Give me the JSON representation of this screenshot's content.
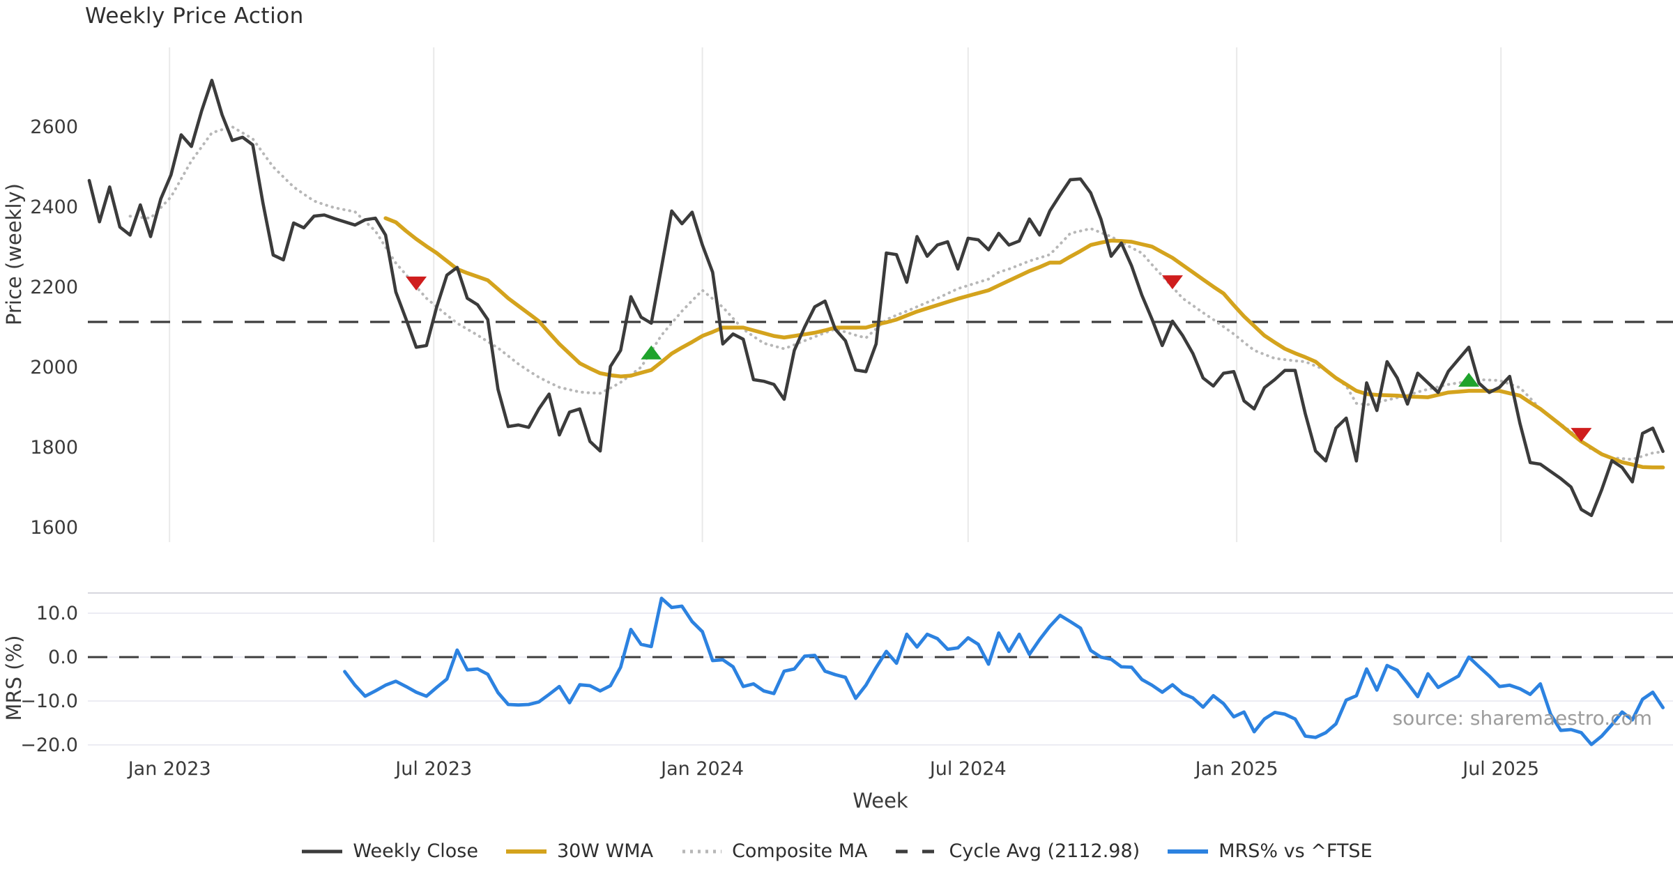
{
  "title": "Weekly Price Action",
  "watermark": "source: sharemaestro.com",
  "axes": {
    "price": {
      "label": "Price (weekly)",
      "ticks": [
        2600,
        2400,
        2200,
        2000,
        1800,
        1600
      ]
    },
    "mrs": {
      "label": "MRS (%)",
      "ticks": [
        {
          "v": 10,
          "label": "10.0"
        },
        {
          "v": 0,
          "label": "0.0"
        },
        {
          "v": -10,
          "label": "−10.0"
        },
        {
          "v": -20,
          "label": "−20.0"
        }
      ]
    },
    "x": {
      "label": "Week",
      "ticks": [
        {
          "label": "Jan 2023",
          "week": 7.857
        },
        {
          "label": "Jul 2023",
          "week": 33.714
        },
        {
          "label": "Jan 2024",
          "week": 60.0
        },
        {
          "label": "Jul 2024",
          "week": 86.0
        },
        {
          "label": "Jan 2025",
          "week": 112.286
        },
        {
          "label": "Jul 2025",
          "week": 138.143
        }
      ]
    }
  },
  "legend": {
    "items": [
      {
        "key": "close",
        "label": "Weekly Close"
      },
      {
        "key": "wma",
        "label": "30W WMA"
      },
      {
        "key": "composite",
        "label": "Composite MA"
      },
      {
        "key": "cycle",
        "label": "Cycle Avg (2112.98)"
      },
      {
        "key": "mrs",
        "label": "MRS% vs ^FTSE"
      }
    ]
  },
  "colors": {
    "close": "#3b3b3b",
    "wma": "#d4a31d",
    "composite": "#b7b7b7",
    "cycle": "#3d3d3d",
    "mrs": "#2c82e0",
    "buy": "#1fa32c",
    "sell": "#cf1d1d",
    "grid_v": "#e9e9e9",
    "grid_h": "#ececf3",
    "spine": "#d6d6de",
    "tick_text": "#3a3a3a"
  },
  "chart_data": {
    "type": "line",
    "title": "Weekly Price Action",
    "xlabel": "Week",
    "ylabel_top": "Price (weekly)",
    "ylabel_bottom": "MRS (%)",
    "start_date": "2022-11-07",
    "frequency": "weekly",
    "cycle_avg": 2112.98,
    "ylim_price": [
      1550,
      2760
    ],
    "ylim_mrs": [
      -21.5,
      14.6
    ],
    "legend_position": "bottom-center",
    "series": [
      {
        "name": "Weekly Close",
        "panel": "price",
        "style": "solid",
        "start_week": 0,
        "values": [
          2466,
          2363,
          2450,
          2350,
          2330,
          2405,
          2326,
          2420,
          2480,
          2580,
          2551,
          2640,
          2716,
          2630,
          2566,
          2574,
          2555,
          2410,
          2280,
          2268,
          2360,
          2348,
          2377,
          2380,
          2371,
          2363,
          2355,
          2368,
          2372,
          2330,
          2188,
          2120,
          2050,
          2054,
          2150,
          2230,
          2249,
          2172,
          2156,
          2119,
          1945,
          1852,
          1856,
          1850,
          1896,
          1933,
          1831,
          1888,
          1896,
          1815,
          1791,
          2002,
          2042,
          2176,
          2125,
          2110,
          2250,
          2390,
          2358,
          2387,
          2305,
          2237,
          2058,
          2083,
          2070,
          1969,
          1965,
          1957,
          1920,
          2042,
          2100,
          2151,
          2165,
          2095,
          2066,
          1993,
          1989,
          2058,
          2285,
          2281,
          2212,
          2326,
          2277,
          2305,
          2313,
          2245,
          2322,
          2318,
          2293,
          2334,
          2305,
          2315,
          2370,
          2330,
          2390,
          2430,
          2468,
          2470,
          2435,
          2370,
          2277,
          2310,
          2253,
          2180,
          2120,
          2054,
          2115,
          2079,
          2034,
          1973,
          1953,
          1985,
          1989,
          1916,
          1896,
          1949,
          1969,
          1992,
          1992,
          1884,
          1791,
          1766,
          1848,
          1873,
          1766,
          1961,
          1892,
          2014,
          1973,
          1908,
          1985,
          1961,
          1937,
          1990,
          2020,
          2050,
          1960,
          1937,
          1950,
          1977,
          1860,
          1762,
          1758,
          1740,
          1722,
          1701,
          1645,
          1630,
          1694,
          1767,
          1750,
          1714,
          1835,
          1848,
          1790
        ]
      },
      {
        "name": "Composite MA",
        "panel": "price",
        "style": "dotted",
        "start_week": 4,
        "values": [
          2377,
          2374,
          2372,
          2398,
          2425,
          2470,
          2515,
          2550,
          2585,
          2593,
          2600,
          2585,
          2570,
          2535,
          2500,
          2475,
          2450,
          2432,
          2415,
          2406,
          2398,
          2393,
          2388,
          2364,
          2340,
          2300,
          2260,
          2231,
          2201,
          2172,
          2151,
          2130,
          2110,
          2095,
          2080,
          2064,
          2048,
          2028,
          2008,
          1991,
          1975,
          1962,
          1950,
          1944,
          1938,
          1936,
          1935,
          1948,
          1962,
          1981,
          2000,
          2040,
          2080,
          2110,
          2140,
          2166,
          2192,
          2171,
          2150,
          2122,
          2095,
          2077,
          2060,
          2053,
          2046,
          2056,
          2066,
          2076,
          2086,
          2095,
          2088,
          2080,
          2073,
          2096,
          2119,
          2130,
          2140,
          2151,
          2162,
          2172,
          2184,
          2196,
          2204,
          2212,
          2220,
          2237,
          2245,
          2255,
          2265,
          2273,
          2281,
          2307,
          2334,
          2340,
          2346,
          2336,
          2326,
          2312,
          2298,
          2285,
          2256,
          2228,
          2200,
          2172,
          2154,
          2136,
          2119,
          2101,
          2083,
          2062,
          2042,
          2032,
          2022,
          2019,
          2016,
          2014,
          2003,
          1993,
          1973,
          1953,
          1910,
          1906,
          1912,
          1918,
          1924,
          1930,
          1938,
          1945,
          1951,
          1957,
          1961,
          1965,
          1969,
          1968,
          1967,
          1958,
          1949,
          1923,
          1896,
          1877,
          1858,
          1839,
          1817,
          1795,
          1785,
          1774,
          1772,
          1770,
          1778,
          1786,
          1789
        ]
      },
      {
        "name": "30W WMA",
        "panel": "price",
        "style": "solid",
        "start_week": 29,
        "values": [
          2372,
          2362,
          2340,
          2320,
          2302,
          2285,
          2265,
          2245,
          2235,
          2226,
          2217,
          2195,
          2172,
          2153,
          2134,
          2115,
          2086,
          2058,
          2034,
          2010,
          1997,
          1985,
          1980,
          1977,
          1979,
          1986,
          1993,
          2013,
          2034,
          2049,
          2063,
          2078,
          2088,
          2099,
          2099,
          2099,
          2092,
          2085,
          2078,
          2074,
          2078,
          2082,
          2086,
          2092,
          2099,
          2099,
          2099,
          2099,
          2106,
          2112,
          2119,
          2129,
          2139,
          2147,
          2155,
          2163,
          2171,
          2178,
          2185,
          2192,
          2204,
          2216,
          2228,
          2240,
          2250,
          2261,
          2261,
          2276,
          2290,
          2305,
          2311,
          2316,
          2315,
          2313,
          2307,
          2301,
          2287,
          2273,
          2255,
          2237,
          2219,
          2201,
          2184,
          2155,
          2127,
          2103,
          2079,
          2062,
          2046,
          2035,
          2025,
          2014,
          1993,
          1973,
          1957,
          1941,
          1933,
          1931,
          1930,
          1929,
          1927,
          1926,
          1925,
          1931,
          1937,
          1939,
          1941,
          1941,
          1941,
          1941,
          1935,
          1929,
          1912,
          1896,
          1876,
          1856,
          1835,
          1815,
          1799,
          1783,
          1773,
          1763,
          1757,
          1751,
          1750,
          1750
        ]
      },
      {
        "name": "MRS% vs ^FTSE",
        "panel": "mrs",
        "style": "solid",
        "start_week": 25,
        "values": [
          -3.3,
          -6.4,
          -8.9,
          -7.7,
          -6.4,
          -5.5,
          -6.7,
          -8.0,
          -8.9,
          -6.9,
          -5.0,
          1.6,
          -2.9,
          -2.7,
          -3.9,
          -8.1,
          -10.8,
          -10.9,
          -10.8,
          -10.2,
          -8.5,
          -6.7,
          -10.4,
          -6.3,
          -6.5,
          -7.7,
          -6.5,
          -2.3,
          6.3,
          2.9,
          2.4,
          13.4,
          11.3,
          11.6,
          8.1,
          5.8,
          -0.8,
          -0.6,
          -2.2,
          -6.7,
          -6.1,
          -7.7,
          -8.3,
          -3.2,
          -2.7,
          0.2,
          0.4,
          -3.2,
          -4.0,
          -4.6,
          -9.4,
          -6.4,
          -2.4,
          1.3,
          -1.4,
          5.2,
          2.3,
          5.2,
          4.2,
          1.8,
          2.1,
          4.4,
          2.9,
          -1.6,
          5.5,
          1.3,
          5.2,
          0.6,
          4.0,
          7.0,
          9.5,
          8.1,
          6.6,
          1.5,
          0.0,
          -0.5,
          -2.2,
          -2.3,
          -5.1,
          -6.4,
          -8.0,
          -6.3,
          -8.3,
          -9.3,
          -11.4,
          -8.8,
          -10.6,
          -13.6,
          -12.5,
          -17.0,
          -14.1,
          -12.6,
          -13.0,
          -14.1,
          -18.0,
          -18.3,
          -17.2,
          -15.2,
          -9.8,
          -8.8,
          -2.7,
          -7.5,
          -1.9,
          -3.0,
          -5.9,
          -9.0,
          -3.8,
          -6.9,
          -5.6,
          -4.3,
          0.0,
          -2.2,
          -4.3,
          -6.7,
          -6.4,
          -7.2,
          -8.5,
          -6.1,
          -13.0,
          -16.7,
          -16.5,
          -17.2,
          -19.9,
          -18.0,
          -15.4,
          -12.5,
          -14.3,
          -9.6,
          -8.0,
          -11.5
        ]
      }
    ],
    "signals": [
      {
        "type": "sell",
        "week": 32,
        "price": 2209
      },
      {
        "type": "buy",
        "week": 55,
        "price": 2037
      },
      {
        "type": "sell",
        "week": 106,
        "price": 2212
      },
      {
        "type": "buy",
        "week": 135,
        "price": 1969
      },
      {
        "type": "sell",
        "week": 146,
        "price": 1831
      }
    ]
  }
}
